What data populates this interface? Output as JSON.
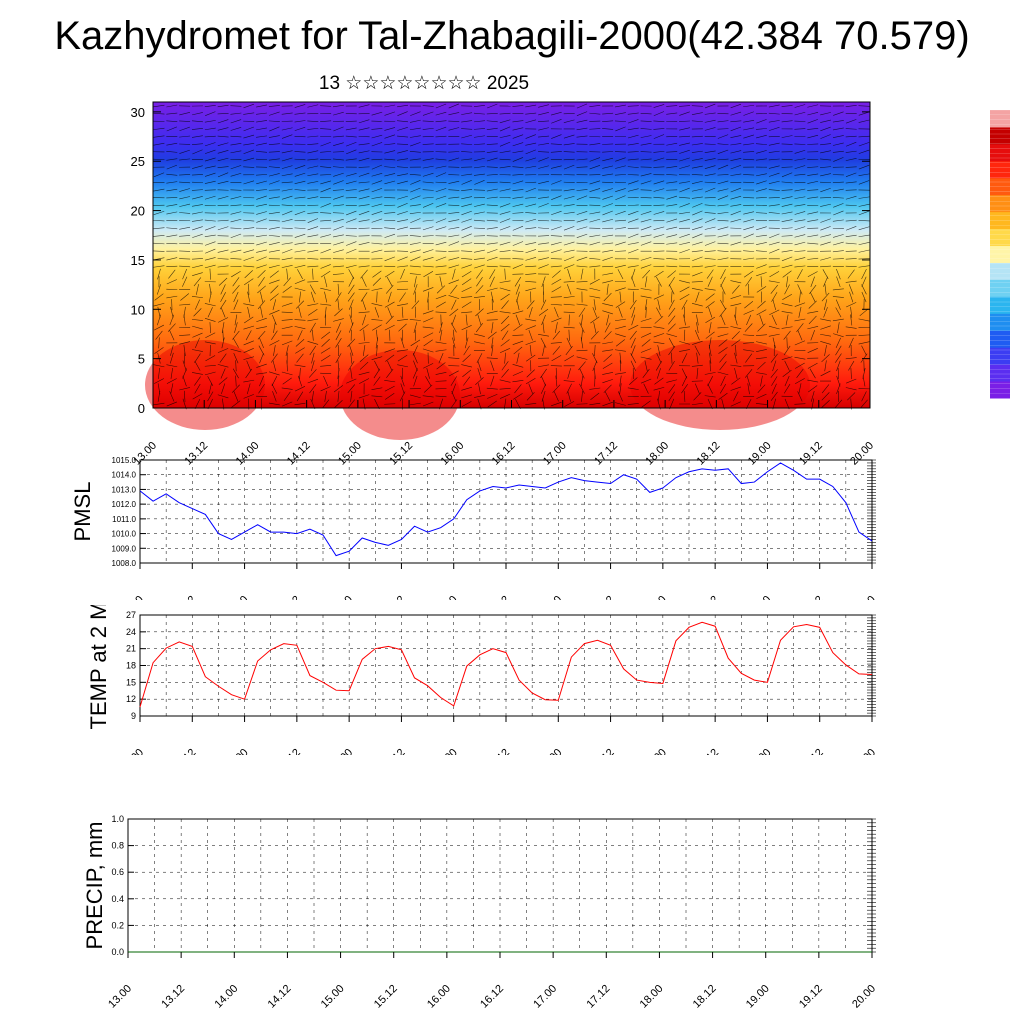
{
  "title": "Kazhydromet for Tal-Zhabagili-2000(42.384 70.579)",
  "subtitle": "13 ☆☆☆☆☆☆☆☆ 2025",
  "time_ticks": [
    "13.00",
    "13.12",
    "14.00",
    "14.12",
    "15.00",
    "15.12",
    "16.00",
    "16.12",
    "17.00",
    "17.12",
    "18.00",
    "18.12",
    "19.00",
    "19.12",
    "20.00"
  ],
  "chart_data": [
    {
      "type": "heatmap",
      "name": "cross-section",
      "ylim": [
        0,
        31
      ],
      "yticks": [
        0,
        5,
        10,
        15,
        20,
        25,
        30
      ],
      "colorbar": [
        "#7a1fe6",
        "#5b2ef0",
        "#3c3df2",
        "#1f5cf2",
        "#1f8ef0",
        "#2bb5ef",
        "#6fd1f2",
        "#b5e4f5",
        "#fff5a8",
        "#ffd94a",
        "#ffb81f",
        "#ff8f14",
        "#ff5a0f",
        "#ff260d",
        "#e60d0d",
        "#c40000",
        "#f4a3a3"
      ]
    },
    {
      "type": "line",
      "name": "pmsl",
      "ylabel": "PMSL",
      "ylim": [
        1008.0,
        1015.0
      ],
      "yticks": [
        "1008.0",
        "1009.0",
        "1010.0",
        "1011.0",
        "1012.0",
        "1013.0",
        "1014.0",
        "1015.0"
      ],
      "color": "#0000ff",
      "x": [
        0,
        3,
        6,
        9,
        12,
        15,
        18,
        21,
        24,
        27,
        30,
        33,
        36,
        39,
        42,
        45,
        48,
        51,
        54,
        57,
        60,
        63,
        66,
        69,
        72,
        75,
        78,
        81,
        84,
        87,
        90,
        93,
        96,
        99,
        102,
        105,
        108,
        111,
        114,
        117,
        120,
        123,
        126,
        129,
        132,
        135,
        138,
        141,
        144,
        147,
        150,
        153,
        156,
        159,
        162,
        165,
        168
      ],
      "values": [
        1012.9,
        1012.2,
        1012.7,
        1012.1,
        1011.7,
        1011.3,
        1010.0,
        1009.6,
        1010.1,
        1010.6,
        1010.1,
        1010.1,
        1010.0,
        1010.3,
        1009.9,
        1008.5,
        1008.8,
        1009.7,
        1009.4,
        1009.2,
        1009.6,
        1010.5,
        1010.1,
        1010.4,
        1011.0,
        1012.3,
        1012.9,
        1013.2,
        1013.1,
        1013.3,
        1013.2,
        1013.1,
        1013.5,
        1013.8,
        1013.6,
        1013.5,
        1013.4,
        1014.0,
        1013.7,
        1012.8,
        1013.1,
        1013.8,
        1014.2,
        1014.4,
        1014.3,
        1014.4,
        1013.4,
        1013.5,
        1014.2,
        1014.8,
        1014.3,
        1013.7,
        1013.7,
        1013.2,
        1012.1,
        1010.1,
        1009.5
      ]
    },
    {
      "type": "line",
      "name": "temp2m",
      "ylabel": "TEMP at 2 M",
      "ylim": [
        9,
        27
      ],
      "yticks": [
        "9",
        "12",
        "15",
        "18",
        "21",
        "24",
        "27"
      ],
      "color": "#ff0000",
      "x": [
        0,
        3,
        6,
        9,
        12,
        15,
        18,
        21,
        24,
        27,
        30,
        33,
        36,
        39,
        42,
        45,
        48,
        51,
        54,
        57,
        60,
        63,
        66,
        69,
        72,
        75,
        78,
        81,
        84,
        87,
        90,
        93,
        96,
        99,
        102,
        105,
        108,
        111,
        114,
        117,
        120,
        123,
        126,
        129,
        132,
        135,
        138,
        141,
        144,
        147,
        150,
        153,
        156,
        159,
        162,
        165,
        168
      ],
      "values": [
        10.6,
        18.5,
        21.1,
        22.2,
        21.4,
        16.0,
        14.3,
        12.8,
        12.0,
        18.8,
        20.8,
        21.9,
        21.6,
        16.2,
        15.0,
        13.6,
        13.5,
        19.1,
        21.0,
        21.4,
        20.8,
        15.8,
        14.4,
        12.3,
        10.8,
        17.9,
        19.9,
        21.0,
        20.3,
        15.4,
        13.1,
        11.9,
        11.8,
        19.5,
        21.9,
        22.5,
        21.6,
        17.4,
        15.4,
        15.0,
        14.8,
        22.4,
        24.8,
        25.7,
        25.0,
        19.3,
        16.6,
        15.4,
        15.0,
        22.5,
        24.9,
        25.3,
        24.8,
        20.3,
        18.1,
        16.5,
        16.4
      ]
    },
    {
      "type": "line",
      "name": "precip",
      "ylabel": "PRECIP, mm",
      "ylim": [
        0.0,
        1.0
      ],
      "yticks": [
        "0.0",
        "0.2",
        "0.4",
        "0.6",
        "0.8",
        "1.0"
      ],
      "color": "#006400",
      "x": [
        0,
        168
      ],
      "values": [
        0,
        0
      ]
    }
  ]
}
